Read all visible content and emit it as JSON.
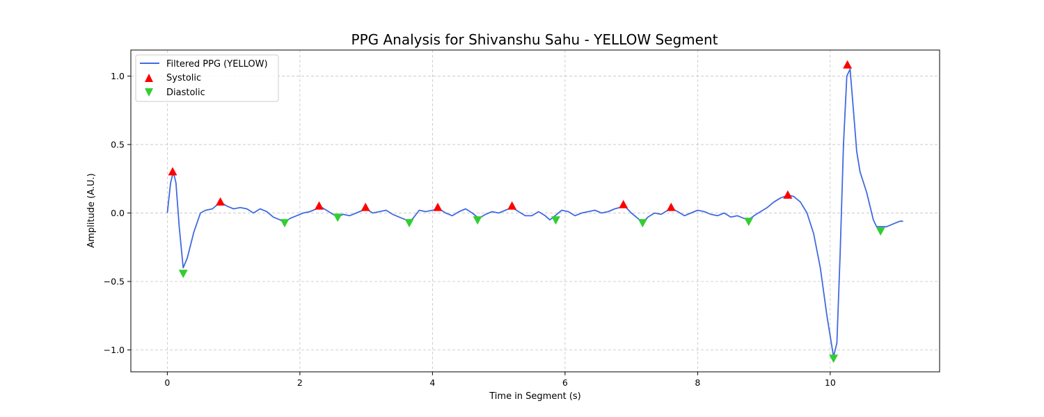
{
  "chart_data": {
    "type": "line",
    "title": "PPG Analysis for Shivanshu Sahu - YELLOW Segment",
    "xlabel": "Time in Segment (s)",
    "ylabel": "Amplitude (A.U.)",
    "xlim": [
      -0.55,
      11.65
    ],
    "ylim": [
      -1.16,
      1.19
    ],
    "xticks": [
      0,
      2,
      4,
      6,
      8,
      10
    ],
    "xtick_labels": [
      "0",
      "2",
      "4",
      "6",
      "8",
      "10"
    ],
    "yticks": [
      -1.0,
      -0.5,
      0.0,
      0.5,
      1.0
    ],
    "ytick_labels": [
      "−1.0",
      "−0.5",
      "0.0",
      "0.5",
      "1.0"
    ],
    "grid": true,
    "legend_position": "top-left",
    "colors": {
      "line": "#4169e1",
      "systolic": "#ff0000",
      "diastolic": "#32cd32"
    },
    "series": [
      {
        "name": "Filtered PPG (YELLOW)",
        "kind": "line",
        "x": [
          0.0,
          0.05,
          0.09,
          0.13,
          0.18,
          0.24,
          0.3,
          0.4,
          0.5,
          0.58,
          0.68,
          0.8,
          0.9,
          1.0,
          1.1,
          1.2,
          1.3,
          1.4,
          1.5,
          1.6,
          1.7,
          1.77,
          1.85,
          1.95,
          2.05,
          2.15,
          2.25,
          2.3,
          2.4,
          2.5,
          2.57,
          2.65,
          2.75,
          2.85,
          2.95,
          3.0,
          3.1,
          3.2,
          3.3,
          3.4,
          3.5,
          3.6,
          3.65,
          3.72,
          3.8,
          3.9,
          4.0,
          4.1,
          4.2,
          4.3,
          4.4,
          4.5,
          4.6,
          4.7,
          4.8,
          4.9,
          5.0,
          5.1,
          5.2,
          5.3,
          5.4,
          5.5,
          5.6,
          5.7,
          5.77,
          5.85,
          5.95,
          6.05,
          6.15,
          6.25,
          6.35,
          6.45,
          6.55,
          6.65,
          6.75,
          6.9,
          7.0,
          7.1,
          7.17,
          7.25,
          7.35,
          7.45,
          7.55,
          7.62,
          7.7,
          7.8,
          7.9,
          8.0,
          8.1,
          8.2,
          8.3,
          8.4,
          8.5,
          8.6,
          8.7,
          8.77,
          8.85,
          8.95,
          9.05,
          9.15,
          9.25,
          9.37,
          9.45,
          9.55,
          9.65,
          9.75,
          9.85,
          9.95,
          10.05,
          10.1,
          10.15,
          10.2,
          10.25,
          10.3,
          10.35,
          10.4,
          10.45,
          10.55,
          10.65,
          10.7,
          10.77,
          10.85,
          10.95,
          11.05,
          11.1
        ],
        "y": [
          0.0,
          0.22,
          0.3,
          0.22,
          -0.1,
          -0.4,
          -0.33,
          -0.14,
          0.0,
          0.02,
          0.03,
          0.08,
          0.05,
          0.03,
          0.04,
          0.03,
          0.0,
          0.03,
          0.01,
          -0.03,
          -0.05,
          -0.07,
          -0.04,
          -0.02,
          0.0,
          0.01,
          0.03,
          0.05,
          0.02,
          -0.01,
          -0.03,
          -0.01,
          -0.02,
          0.0,
          0.02,
          0.03,
          0.0,
          0.01,
          0.02,
          -0.01,
          -0.03,
          -0.05,
          -0.07,
          -0.03,
          0.02,
          0.01,
          0.02,
          0.03,
          0.0,
          -0.02,
          0.01,
          0.03,
          0.0,
          -0.04,
          -0.01,
          0.01,
          0.0,
          0.02,
          0.04,
          0.01,
          -0.02,
          -0.02,
          0.01,
          -0.02,
          -0.05,
          -0.02,
          0.02,
          0.01,
          -0.02,
          0.0,
          0.01,
          0.02,
          0.0,
          0.01,
          0.03,
          0.05,
          0.0,
          -0.04,
          -0.07,
          -0.03,
          0.0,
          -0.01,
          0.02,
          0.03,
          0.01,
          -0.02,
          0.0,
          0.02,
          0.01,
          -0.01,
          -0.02,
          0.0,
          -0.03,
          -0.02,
          -0.04,
          -0.05,
          -0.02,
          0.01,
          0.04,
          0.08,
          0.11,
          0.13,
          0.12,
          0.08,
          0.0,
          -0.15,
          -0.4,
          -0.75,
          -1.05,
          -0.95,
          -0.3,
          0.5,
          1.0,
          1.05,
          0.75,
          0.45,
          0.3,
          0.15,
          -0.05,
          -0.1,
          -0.1,
          -0.1,
          -0.08,
          -0.06,
          -0.06
        ]
      },
      {
        "name": "Systolic",
        "kind": "marker",
        "marker": "triangle-up",
        "x": [
          0.08,
          0.8,
          2.29,
          2.99,
          4.08,
          5.2,
          6.88,
          7.6,
          9.36,
          10.26
        ],
        "y": [
          0.3,
          0.08,
          0.05,
          0.04,
          0.04,
          0.05,
          0.06,
          0.04,
          0.13,
          1.08
        ]
      },
      {
        "name": "Diastolic",
        "kind": "marker",
        "marker": "triangle-down",
        "x": [
          0.24,
          1.77,
          2.57,
          3.65,
          4.68,
          5.86,
          7.17,
          8.77,
          10.05,
          10.76
        ],
        "y": [
          -0.44,
          -0.07,
          -0.03,
          -0.07,
          -0.05,
          -0.05,
          -0.07,
          -0.06,
          -1.06,
          -0.13
        ]
      }
    ]
  }
}
